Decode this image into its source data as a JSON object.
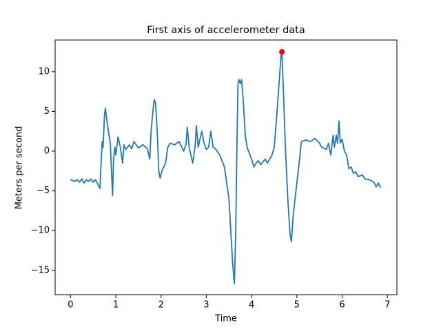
{
  "chart_data": {
    "type": "line",
    "title": "First axis of accelerometer data",
    "xlabel": "Time",
    "ylabel": "Meters per second",
    "x": [
      0.0,
      0.1,
      0.15,
      0.2,
      0.25,
      0.3,
      0.35,
      0.4,
      0.45,
      0.5,
      0.55,
      0.6,
      0.65,
      0.68,
      0.7,
      0.72,
      0.75,
      0.77,
      0.8,
      0.85,
      0.88,
      0.9,
      0.93,
      0.95,
      0.98,
      1.0,
      1.05,
      1.1,
      1.15,
      1.18,
      1.22,
      1.3,
      1.35,
      1.4,
      1.5,
      1.6,
      1.7,
      1.75,
      1.78,
      1.82,
      1.85,
      1.88,
      1.92,
      1.95,
      1.98,
      2.02,
      2.1,
      2.15,
      2.2,
      2.3,
      2.4,
      2.5,
      2.55,
      2.58,
      2.62,
      2.7,
      2.75,
      2.78,
      2.82,
      2.9,
      2.95,
      3.0,
      3.05,
      3.1,
      3.15,
      3.2,
      3.3,
      3.4,
      3.5,
      3.58,
      3.62,
      3.65,
      3.68,
      3.7,
      3.72,
      3.75,
      3.78,
      3.82,
      3.86,
      3.9,
      4.0,
      4.05,
      4.1,
      4.15,
      4.2,
      4.3,
      4.35,
      4.45,
      4.5,
      4.55,
      4.6,
      4.65,
      4.67,
      4.7,
      4.75,
      4.8,
      4.85,
      4.88,
      4.92,
      5.0,
      5.05,
      5.1,
      5.2,
      5.3,
      5.4,
      5.5,
      5.55,
      5.65,
      5.7,
      5.75,
      5.8,
      5.83,
      5.87,
      5.9,
      5.93,
      5.96,
      6.0,
      6.05,
      6.1,
      6.15,
      6.2,
      6.25,
      6.3,
      6.35,
      6.45,
      6.5,
      6.6,
      6.7,
      6.75,
      6.8,
      6.85
    ],
    "values": [
      -3.6,
      -3.8,
      -3.6,
      -3.9,
      -3.5,
      -4.0,
      -3.6,
      -3.8,
      -3.5,
      -3.9,
      -3.6,
      -4.1,
      -4.7,
      -1.0,
      1.2,
      0.5,
      4.5,
      5.4,
      4.0,
      2.0,
      1.0,
      -2.0,
      -5.6,
      -1.0,
      0.5,
      -0.5,
      1.8,
      0.5,
      -1.5,
      0.8,
      0.2,
      0.8,
      0.3,
      1.2,
      0.4,
      0.8,
      0.3,
      -1.0,
      2.5,
      5.0,
      6.5,
      6.0,
      2.0,
      -2.5,
      -3.4,
      -2.5,
      -1.5,
      0.5,
      1.0,
      0.8,
      1.2,
      0.0,
      0.8,
      3.0,
      0.5,
      -1.5,
      0.5,
      3.2,
      0.5,
      2.5,
      1.0,
      0.2,
      0.5,
      2.5,
      0.5,
      0.3,
      -0.5,
      -2.0,
      -6.0,
      -14.0,
      -16.7,
      -10.0,
      2.0,
      8.5,
      9.0,
      8.5,
      9.0,
      6.0,
      2.0,
      0.5,
      -1.0,
      -2.0,
      -1.5,
      -1.2,
      -1.7,
      -1.0,
      -1.5,
      -0.5,
      0.5,
      4.0,
      8.0,
      12.0,
      12.5,
      8.0,
      0.0,
      -6.0,
      -10.5,
      -11.4,
      -8.0,
      -4.0,
      -1.5,
      1.2,
      1.4,
      1.2,
      1.6,
      1.0,
      0.5,
      0.2,
      1.0,
      -0.5,
      2.0,
      0.5,
      2.0,
      1.0,
      3.8,
      1.0,
      1.5,
      0.0,
      -0.5,
      -2.2,
      -2.0,
      -2.8,
      -2.6,
      -3.2,
      -3.0,
      -3.5,
      -3.6,
      -3.9,
      -4.5,
      -4.0,
      -4.6
    ],
    "color": "#1f77b4",
    "highlight": {
      "x": 4.67,
      "y": 12.5,
      "color": "#ff0000"
    },
    "xlim": [
      -0.34,
      7.21
    ],
    "ylim": [
      -18.06,
      13.98
    ],
    "xticks": [
      0,
      1,
      2,
      3,
      4,
      5,
      6,
      7
    ],
    "yticks": [
      {
        "value": -15,
        "label": "−15"
      },
      {
        "value": -10,
        "label": "−10"
      },
      {
        "value": -5,
        "label": "−5"
      },
      0,
      5,
      10
    ]
  }
}
